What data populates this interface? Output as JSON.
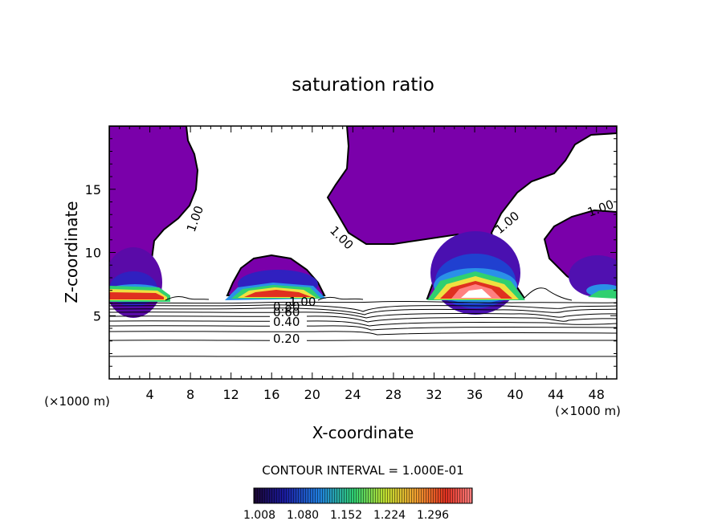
{
  "chart_data": {
    "type": "contour",
    "title": "saturation ratio",
    "xlabel": "X-coordinate",
    "ylabel": "Z-coordinate",
    "x_unit_label": "(×1000 m)",
    "y_unit_label": "(×1000 m)",
    "xlim": [
      0,
      50
    ],
    "ylim": [
      0,
      20
    ],
    "x_ticks": [
      4,
      8,
      12,
      16,
      20,
      24,
      28,
      32,
      36,
      40,
      44,
      48
    ],
    "y_ticks": [
      5,
      10,
      15
    ],
    "contour_interval_text": "CONTOUR INTERVAL = 1.000E-01",
    "contour_levels_labeled": [
      {
        "label": "0.20",
        "x": 17.5,
        "z": 3.1
      },
      {
        "label": "0.40",
        "x": 17.5,
        "z": 4.5
      },
      {
        "label": "0.60",
        "x": 17.5,
        "z": 5.2
      },
      {
        "label": "0.80",
        "x": 17.5,
        "z": 5.6
      },
      {
        "label": "1.00",
        "x": 18.5,
        "z": 6.0
      },
      {
        "label": "1.00",
        "x": 8.0,
        "z": 13.0
      },
      {
        "label": "1.00",
        "x": 22.5,
        "z": 11.5
      },
      {
        "label": "1.00",
        "x": 39.5,
        "z": 12.5
      },
      {
        "label": "1.00",
        "x": 48.0,
        "z": 13.7
      }
    ],
    "colorbar": {
      "tick_labels": [
        "1.008",
        "1.080",
        "1.152",
        "1.224",
        "1.296"
      ],
      "colors": [
        "#1a0530",
        "#1a1aa0",
        "#2080e0",
        "#30d070",
        "#c0e030",
        "#f0a030",
        "#e03020",
        "#ffffff"
      ]
    },
    "supersaturated_color": "#7a00aa"
  }
}
